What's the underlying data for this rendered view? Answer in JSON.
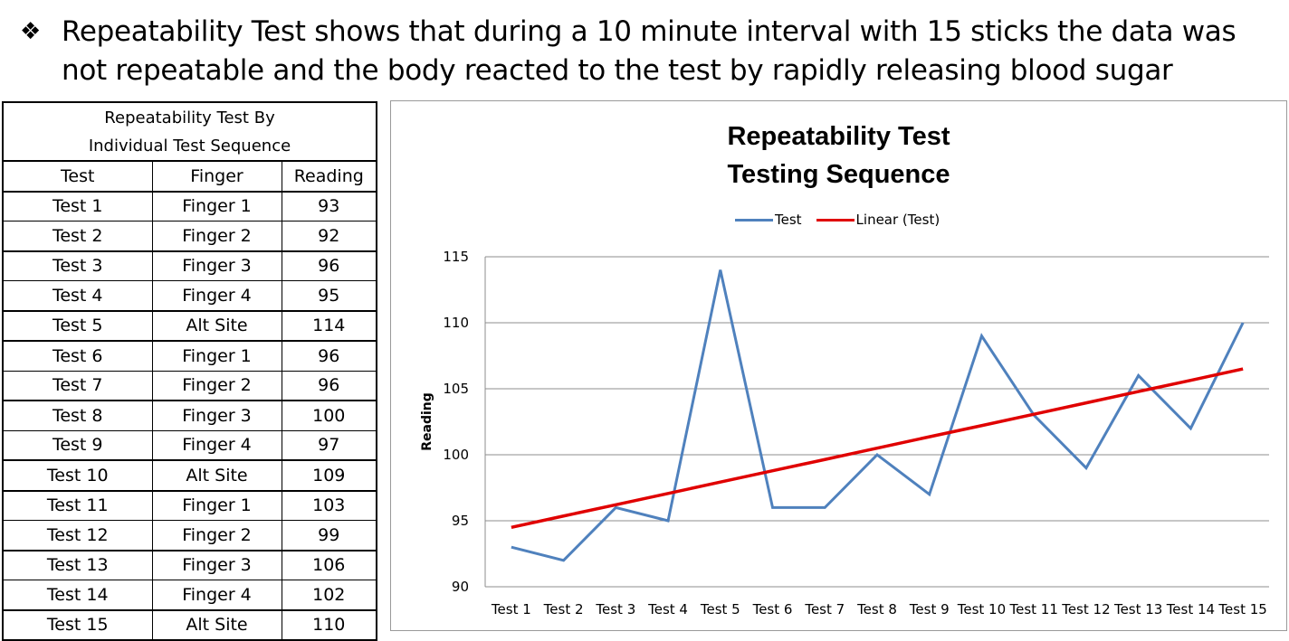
{
  "headline": {
    "bullet": "❖",
    "text": "Repeatability Test shows that during a 10 minute interval with 15 sticks the data was not repeatable and the body reacted to the test by rapidly releasing blood sugar"
  },
  "table": {
    "caption_line1": "Repeatability Test By",
    "caption_line2": "Individual Test Sequence",
    "headers": [
      "Test",
      "Finger",
      "Reading"
    ],
    "rows": [
      [
        "Test 1",
        "Finger 1",
        "93"
      ],
      [
        "Test 2",
        "Finger 2",
        "92"
      ],
      [
        "Test 3",
        "Finger 3",
        "96"
      ],
      [
        "Test 4",
        "Finger 4",
        "95"
      ],
      [
        "Test 5",
        "Alt Site",
        "114"
      ],
      [
        "Test 6",
        "Finger 1",
        "96"
      ],
      [
        "Test 7",
        "Finger 2",
        "96"
      ],
      [
        "Test 8",
        "Finger 3",
        "100"
      ],
      [
        "Test 9",
        "Finger 4",
        "97"
      ],
      [
        "Test 10",
        "Alt Site",
        "109"
      ],
      [
        "Test 11",
        "Finger 1",
        "103"
      ],
      [
        "Test 12",
        "Finger 2",
        "99"
      ],
      [
        "Test 13",
        "Finger 3",
        "106"
      ],
      [
        "Test 14",
        "Finger 4",
        "102"
      ],
      [
        "Test 15",
        "Alt Site",
        "110"
      ]
    ]
  },
  "chart_data": {
    "type": "line",
    "title_line1": "Repeatability Test",
    "title_line2": "Testing Sequence",
    "xlabel": "",
    "ylabel": "Reading",
    "categories": [
      "Test 1",
      "Test 2",
      "Test 3",
      "Test 4",
      "Test 5",
      "Test 6",
      "Test 7",
      "Test 8",
      "Test 9",
      "Test 10",
      "Test 11",
      "Test 12",
      "Test 13",
      "Test 14",
      "Test 15"
    ],
    "series": [
      {
        "name": "Test",
        "values": [
          93,
          92,
          96,
          95,
          114,
          96,
          96,
          100,
          97,
          109,
          103,
          99,
          106,
          102,
          110
        ],
        "color": "#4f81bd"
      },
      {
        "name": "Linear (Test)",
        "values": [
          94.5,
          95.36,
          96.21,
          97.07,
          97.93,
          98.79,
          99.64,
          100.5,
          101.36,
          102.21,
          103.07,
          103.93,
          104.79,
          105.64,
          106.5
        ],
        "color": "#e00000"
      }
    ],
    "yticks": [
      90,
      95,
      100,
      105,
      110,
      115
    ],
    "ylim": [
      90,
      115
    ],
    "grid": true,
    "legend": "top"
  }
}
